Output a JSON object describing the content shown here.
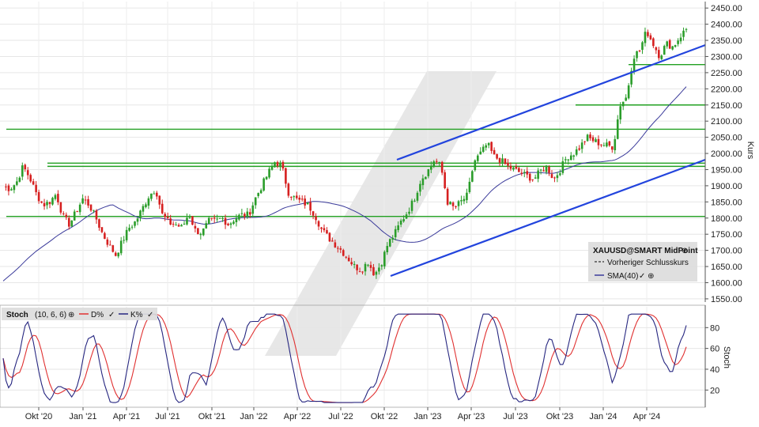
{
  "chart_data": [
    {
      "type": "candlestick",
      "symbol": "XAUUSD@SMART MidPoint",
      "ylabel": "Kurs",
      "ylim": [
        1540,
        2470
      ],
      "yticks": [
        "1550.00",
        "1600.00",
        "1650.00",
        "1700.00",
        "1750.00",
        "1800.00",
        "1850.00",
        "1900.00",
        "1950.00",
        "2000.00",
        "2050.00",
        "2100.00",
        "2150.00",
        "2200.00",
        "2250.00",
        "2300.00",
        "2350.00",
        "2400.00",
        "2450.00"
      ],
      "x_labels": [
        "Okt '20",
        "Jan '21",
        "Apr '21",
        "Jul '21",
        "Okt '21",
        "Jan '22",
        "Apr '22",
        "Jul '22",
        "Okt '22",
        "Jan '23",
        "Apr '23",
        "Jul '23",
        "Okt '23",
        "Jan '24",
        "Apr '24"
      ],
      "legend": {
        "title": "XAUUSD@SMART MidPoint",
        "prev_close_label": "Vorheriger Schlusskurs",
        "sma_label": "SMA(40)"
      },
      "price_path": [
        1900,
        1890,
        1910,
        1960,
        1925,
        1875,
        1840,
        1850,
        1875,
        1805,
        1780,
        1820,
        1860,
        1840,
        1800,
        1750,
        1715,
        1685,
        1730,
        1770,
        1790,
        1830,
        1870,
        1890,
        1810,
        1785,
        1780,
        1770,
        1815,
        1760,
        1755,
        1790,
        1790,
        1800,
        1780,
        1800,
        1810,
        1810,
        1860,
        1900,
        1940,
        1975,
        1960,
        1880,
        1860,
        1850,
        1840,
        1810,
        1765,
        1740,
        1720,
        1700,
        1675,
        1650,
        1640,
        1665,
        1625,
        1660,
        1720,
        1750,
        1790,
        1820,
        1860,
        1920,
        1945,
        1980,
        1960,
        1850,
        1830,
        1850,
        1870,
        1975,
        2000,
        2030,
        1990,
        1980,
        1960,
        1950,
        1940,
        1930,
        1920,
        1945,
        1960,
        1920,
        1950,
        1990,
        2000,
        2020,
        2050,
        2040,
        2030,
        2025,
        2020,
        2150,
        2175,
        2300,
        2320,
        2380,
        2340,
        2300,
        2340,
        2330,
        2360,
        2385
      ],
      "horizontal_levels": [
        2275,
        2150,
        2075,
        1970,
        1960,
        1805
      ],
      "trend_lines": [
        {
          "from": [
            "Jan '23",
            1990
          ],
          "to": [
            "Apr '24",
            2360
          ]
        },
        {
          "from": [
            "Okt '22",
            1610
          ],
          "to": [
            "Apr '24",
            1990
          ]
        }
      ],
      "sma_start": 1605
    },
    {
      "type": "line",
      "title": "Stoch",
      "params": "(10, 6, 6)",
      "ylabel": "Stoch",
      "ylim": [
        5,
        100
      ],
      "yticks": [
        "20",
        "40",
        "60",
        "80"
      ],
      "series": [
        {
          "name": "D%",
          "color": "#e03030"
        },
        {
          "name": "K%",
          "color": "#262680"
        }
      ]
    }
  ]
}
